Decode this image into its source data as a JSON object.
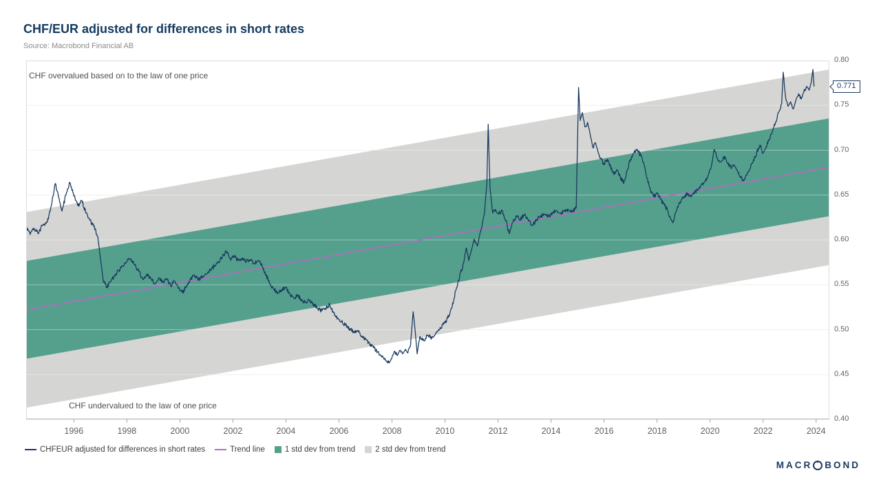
{
  "colors": {
    "navy": "#16365c",
    "purple": "#b36ac4",
    "green_band": "#55a08d",
    "gray_band": "#d5d5d3",
    "grid": "#e9e9e9",
    "border": "#dcdcdc",
    "axis_line": "#a6a6a6",
    "axis_text": "#5f5f5f",
    "title": "#123a5f"
  },
  "logo": {
    "pre": "MACR",
    "post": "BOND"
  },
  "chart_data": {
    "type": "line",
    "title": "CHF/EUR adjusted for differences in short rates",
    "source": "Source: Macrobond Financial AB",
    "x_domain": [
      1994.2,
      2024.5
    ],
    "y_domain": [
      0.4,
      0.8
    ],
    "x_ticks": [
      1996,
      1998,
      2000,
      2002,
      2004,
      2006,
      2008,
      2010,
      2012,
      2014,
      2016,
      2018,
      2020,
      2022,
      2024
    ],
    "y_ticks": [
      0.4,
      0.45,
      0.5,
      0.55,
      0.6,
      0.65,
      0.7,
      0.75,
      0.8
    ],
    "grid": "horizontal",
    "legend_position": "bottom",
    "annotations": {
      "top": "CHF overvalued based on to the law of one price",
      "bottom": "CHF undervalued to the law of one price"
    },
    "last_value_label": "0.771",
    "last_value": 0.771,
    "series": [
      {
        "name": "CHFEUR adjusted for differences in short rates",
        "type": "line",
        "color": "#16365c",
        "points": [
          [
            1994.2,
            0.615
          ],
          [
            1994.35,
            0.606
          ],
          [
            1994.5,
            0.613
          ],
          [
            1994.65,
            0.607
          ],
          [
            1994.8,
            0.616
          ],
          [
            1995.0,
            0.62
          ],
          [
            1995.15,
            0.638
          ],
          [
            1995.3,
            0.663
          ],
          [
            1995.42,
            0.648
          ],
          [
            1995.55,
            0.632
          ],
          [
            1995.7,
            0.65
          ],
          [
            1995.85,
            0.664
          ],
          [
            1996.0,
            0.649
          ],
          [
            1996.15,
            0.638
          ],
          [
            1996.3,
            0.644
          ],
          [
            1996.45,
            0.63
          ],
          [
            1996.6,
            0.622
          ],
          [
            1996.75,
            0.615
          ],
          [
            1996.9,
            0.604
          ],
          [
            1997.0,
            0.58
          ],
          [
            1997.1,
            0.556
          ],
          [
            1997.25,
            0.548
          ],
          [
            1997.4,
            0.554
          ],
          [
            1997.55,
            0.561
          ],
          [
            1997.7,
            0.566
          ],
          [
            1997.85,
            0.571
          ],
          [
            1998.0,
            0.576
          ],
          [
            1998.15,
            0.579
          ],
          [
            1998.3,
            0.572
          ],
          [
            1998.45,
            0.565
          ],
          [
            1998.6,
            0.556
          ],
          [
            1998.75,
            0.562
          ],
          [
            1998.9,
            0.557
          ],
          [
            1999.05,
            0.551
          ],
          [
            1999.2,
            0.558
          ],
          [
            1999.35,
            0.553
          ],
          [
            1999.5,
            0.556
          ],
          [
            1999.65,
            0.549
          ],
          [
            1999.8,
            0.554
          ],
          [
            1999.95,
            0.546
          ],
          [
            2000.1,
            0.541
          ],
          [
            2000.25,
            0.549
          ],
          [
            2000.4,
            0.556
          ],
          [
            2000.55,
            0.561
          ],
          [
            2000.7,
            0.556
          ],
          [
            2000.85,
            0.559
          ],
          [
            2001.0,
            0.562
          ],
          [
            2001.15,
            0.566
          ],
          [
            2001.3,
            0.571
          ],
          [
            2001.45,
            0.576
          ],
          [
            2001.6,
            0.581
          ],
          [
            2001.75,
            0.587
          ],
          [
            2001.9,
            0.579
          ],
          [
            2002.05,
            0.582
          ],
          [
            2002.2,
            0.577
          ],
          [
            2002.35,
            0.58
          ],
          [
            2002.5,
            0.576
          ],
          [
            2002.65,
            0.578
          ],
          [
            2002.8,
            0.574
          ],
          [
            2002.95,
            0.577
          ],
          [
            2003.1,
            0.571
          ],
          [
            2003.25,
            0.561
          ],
          [
            2003.4,
            0.551
          ],
          [
            2003.55,
            0.545
          ],
          [
            2003.7,
            0.541
          ],
          [
            2003.85,
            0.545
          ],
          [
            2004.0,
            0.547
          ],
          [
            2004.15,
            0.54
          ],
          [
            2004.3,
            0.535
          ],
          [
            2004.45,
            0.538
          ],
          [
            2004.6,
            0.533
          ],
          [
            2004.75,
            0.53
          ],
          [
            2004.9,
            0.533
          ],
          [
            2005.05,
            0.528
          ],
          [
            2005.2,
            0.524
          ],
          [
            2005.35,
            0.521
          ],
          [
            2005.5,
            0.524
          ],
          [
            2005.65,
            0.528
          ],
          [
            2005.8,
            0.519
          ],
          [
            2005.95,
            0.513
          ],
          [
            2006.1,
            0.509
          ],
          [
            2006.25,
            0.505
          ],
          [
            2006.4,
            0.501
          ],
          [
            2006.55,
            0.497
          ],
          [
            2006.7,
            0.499
          ],
          [
            2006.85,
            0.492
          ],
          [
            2007.0,
            0.489
          ],
          [
            2007.15,
            0.485
          ],
          [
            2007.3,
            0.48
          ],
          [
            2007.45,
            0.475
          ],
          [
            2007.6,
            0.47
          ],
          [
            2007.75,
            0.466
          ],
          [
            2007.9,
            0.463
          ],
          [
            2008.0,
            0.469
          ],
          [
            2008.1,
            0.476
          ],
          [
            2008.2,
            0.471
          ],
          [
            2008.3,
            0.477
          ],
          [
            2008.4,
            0.473
          ],
          [
            2008.5,
            0.478
          ],
          [
            2008.6,
            0.474
          ],
          [
            2008.7,
            0.483
          ],
          [
            2008.8,
            0.52
          ],
          [
            2008.88,
            0.497
          ],
          [
            2008.95,
            0.473
          ],
          [
            2009.05,
            0.492
          ],
          [
            2009.2,
            0.488
          ],
          [
            2009.35,
            0.494
          ],
          [
            2009.5,
            0.491
          ],
          [
            2009.65,
            0.496
          ],
          [
            2009.8,
            0.5
          ],
          [
            2009.95,
            0.506
          ],
          [
            2010.1,
            0.513
          ],
          [
            2010.25,
            0.524
          ],
          [
            2010.4,
            0.543
          ],
          [
            2010.55,
            0.559
          ],
          [
            2010.7,
            0.574
          ],
          [
            2010.8,
            0.591
          ],
          [
            2010.9,
            0.577
          ],
          [
            2011.0,
            0.589
          ],
          [
            2011.1,
            0.601
          ],
          [
            2011.22,
            0.593
          ],
          [
            2011.35,
            0.61
          ],
          [
            2011.48,
            0.628
          ],
          [
            2011.58,
            0.662
          ],
          [
            2011.63,
            0.729
          ],
          [
            2011.7,
            0.657
          ],
          [
            2011.8,
            0.63
          ],
          [
            2011.9,
            0.634
          ],
          [
            2012.0,
            0.629
          ],
          [
            2012.15,
            0.633
          ],
          [
            2012.3,
            0.622
          ],
          [
            2012.42,
            0.607
          ],
          [
            2012.55,
            0.619
          ],
          [
            2012.7,
            0.626
          ],
          [
            2012.85,
            0.623
          ],
          [
            2013.0,
            0.629
          ],
          [
            2013.15,
            0.621
          ],
          [
            2013.3,
            0.616
          ],
          [
            2013.45,
            0.622
          ],
          [
            2013.6,
            0.626
          ],
          [
            2013.75,
            0.629
          ],
          [
            2013.9,
            0.626
          ],
          [
            2014.05,
            0.63
          ],
          [
            2014.2,
            0.633
          ],
          [
            2014.35,
            0.63
          ],
          [
            2014.5,
            0.632
          ],
          [
            2014.65,
            0.634
          ],
          [
            2014.8,
            0.632
          ],
          [
            2014.95,
            0.636
          ],
          [
            2015.04,
            0.77
          ],
          [
            2015.1,
            0.733
          ],
          [
            2015.18,
            0.742
          ],
          [
            2015.28,
            0.726
          ],
          [
            2015.38,
            0.731
          ],
          [
            2015.48,
            0.717
          ],
          [
            2015.58,
            0.703
          ],
          [
            2015.68,
            0.708
          ],
          [
            2015.78,
            0.697
          ],
          [
            2015.88,
            0.691
          ],
          [
            2016.0,
            0.684
          ],
          [
            2016.12,
            0.69
          ],
          [
            2016.25,
            0.681
          ],
          [
            2016.38,
            0.673
          ],
          [
            2016.5,
            0.678
          ],
          [
            2016.62,
            0.669
          ],
          [
            2016.75,
            0.664
          ],
          [
            2016.88,
            0.678
          ],
          [
            2017.0,
            0.69
          ],
          [
            2017.12,
            0.697
          ],
          [
            2017.25,
            0.701
          ],
          [
            2017.38,
            0.694
          ],
          [
            2017.5,
            0.686
          ],
          [
            2017.62,
            0.669
          ],
          [
            2017.75,
            0.655
          ],
          [
            2017.88,
            0.648
          ],
          [
            2018.0,
            0.653
          ],
          [
            2018.12,
            0.646
          ],
          [
            2018.25,
            0.64
          ],
          [
            2018.38,
            0.634
          ],
          [
            2018.5,
            0.624
          ],
          [
            2018.6,
            0.619
          ],
          [
            2018.72,
            0.632
          ],
          [
            2018.85,
            0.642
          ],
          [
            2019.0,
            0.647
          ],
          [
            2019.15,
            0.652
          ],
          [
            2019.3,
            0.648
          ],
          [
            2019.45,
            0.654
          ],
          [
            2019.6,
            0.659
          ],
          [
            2019.75,
            0.663
          ],
          [
            2019.9,
            0.669
          ],
          [
            2020.05,
            0.682
          ],
          [
            2020.16,
            0.701
          ],
          [
            2020.28,
            0.691
          ],
          [
            2020.4,
            0.687
          ],
          [
            2020.52,
            0.693
          ],
          [
            2020.65,
            0.686
          ],
          [
            2020.78,
            0.681
          ],
          [
            2020.9,
            0.684
          ],
          [
            2021.0,
            0.678
          ],
          [
            2021.12,
            0.671
          ],
          [
            2021.25,
            0.666
          ],
          [
            2021.38,
            0.672
          ],
          [
            2021.5,
            0.679
          ],
          [
            2021.62,
            0.687
          ],
          [
            2021.75,
            0.696
          ],
          [
            2021.88,
            0.706
          ],
          [
            2022.0,
            0.697
          ],
          [
            2022.1,
            0.703
          ],
          [
            2022.22,
            0.711
          ],
          [
            2022.35,
            0.721
          ],
          [
            2022.48,
            0.732
          ],
          [
            2022.6,
            0.743
          ],
          [
            2022.7,
            0.752
          ],
          [
            2022.76,
            0.787
          ],
          [
            2022.84,
            0.761
          ],
          [
            2022.94,
            0.749
          ],
          [
            2023.04,
            0.754
          ],
          [
            2023.14,
            0.746
          ],
          [
            2023.24,
            0.756
          ],
          [
            2023.34,
            0.763
          ],
          [
            2023.44,
            0.757
          ],
          [
            2023.54,
            0.766
          ],
          [
            2023.64,
            0.771
          ],
          [
            2023.74,
            0.767
          ],
          [
            2023.82,
            0.776
          ],
          [
            2023.88,
            0.79
          ],
          [
            2023.92,
            0.771
          ]
        ]
      },
      {
        "name": "Trend line",
        "type": "line",
        "color": "#b36ac4",
        "x": [
          1994.2,
          2024.5
        ],
        "y": [
          0.522,
          0.681
        ]
      },
      {
        "name": "1 std dev from trend",
        "type": "band",
        "color": "#55a08d",
        "around": "Trend line",
        "half_width": 0.0545
      },
      {
        "name": "2 std dev from trend",
        "type": "band",
        "color": "#d5d5d3",
        "around": "Trend line",
        "half_width": 0.109
      }
    ]
  }
}
